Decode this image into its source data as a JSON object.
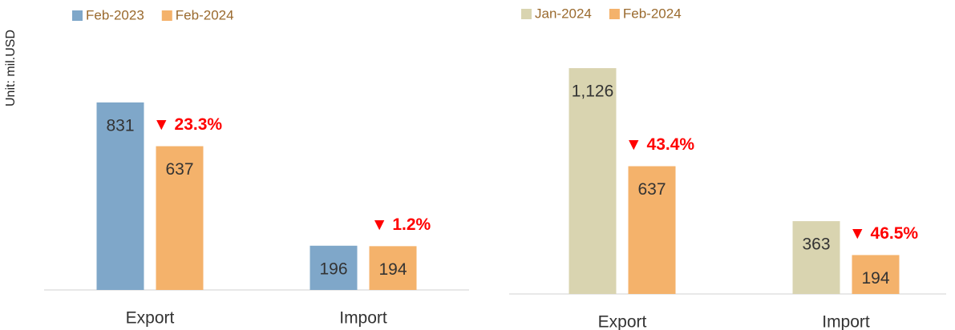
{
  "chart_data": [
    {
      "type": "bar",
      "y_label": "Unit: mil.USD",
      "categories": [
        "Export",
        "Import"
      ],
      "series": [
        {
          "name": "Feb-2023",
          "color": "#7fa7c9",
          "values": [
            831,
            196
          ]
        },
        {
          "name": "Feb-2024",
          "color": "#f4b26b",
          "values": [
            637,
            194
          ]
        }
      ],
      "annotations": [
        "▼ 23.3%",
        "▼ 1.2%"
      ],
      "annotation_color": "#ff0000",
      "ylim": [
        0,
        1150
      ]
    },
    {
      "type": "bar",
      "categories": [
        "Export",
        "Import"
      ],
      "series": [
        {
          "name": "Jan-2024",
          "color": "#d9d4b0",
          "values": [
            1126,
            363
          ],
          "value_labels": [
            "1,126",
            "363"
          ]
        },
        {
          "name": "Feb-2024",
          "color": "#f4b26b",
          "values": [
            637,
            194
          ]
        }
      ],
      "annotations": [
        "▼ 43.4%",
        "▼ 46.5%"
      ],
      "annotation_color": "#ff0000",
      "ylim": [
        0,
        1300
      ]
    }
  ]
}
